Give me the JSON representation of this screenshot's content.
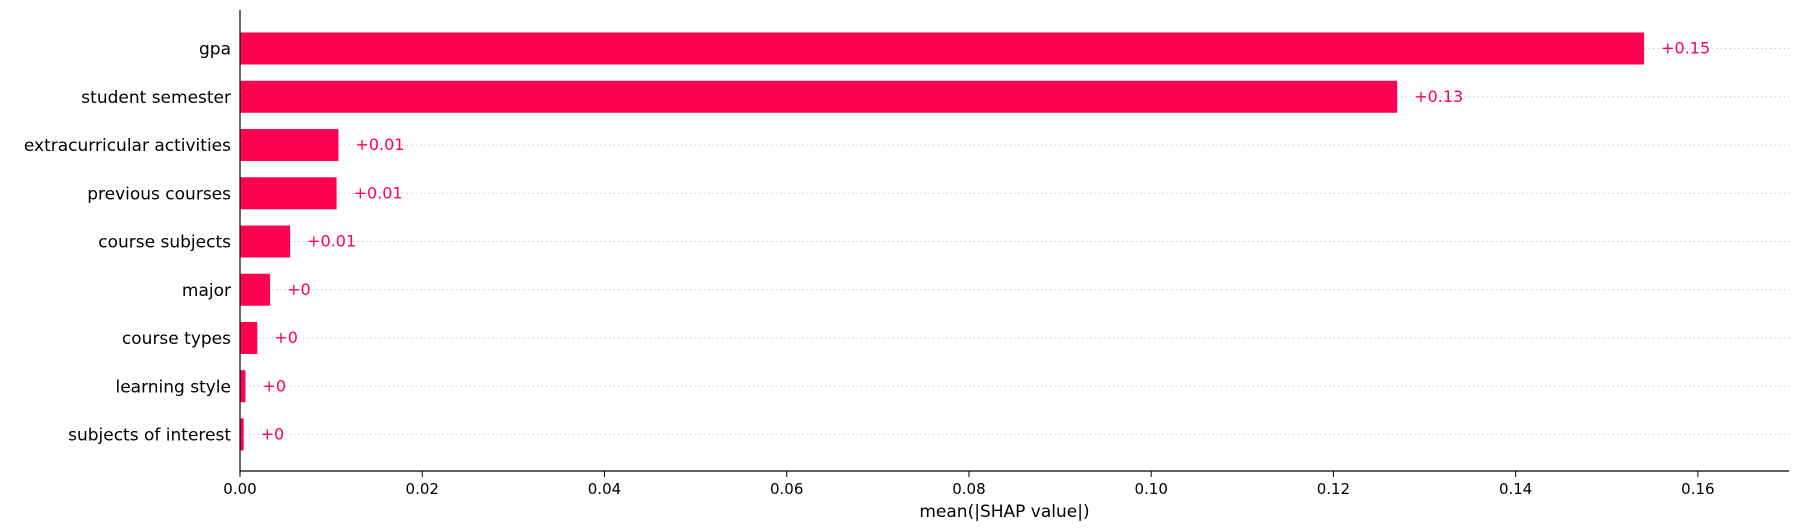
{
  "chart_data": {
    "type": "bar",
    "orientation": "horizontal",
    "categories": [
      "gpa",
      "student semester",
      "extracurricular activities",
      "previous courses",
      "course subjects",
      "major",
      "course types",
      "learning style",
      "subjects of interest"
    ],
    "values": [
      0.1541,
      0.127,
      0.0108,
      0.0106,
      0.0055,
      0.0033,
      0.0019,
      0.0006,
      0.0004
    ],
    "data_labels": [
      "+0.15",
      "+0.13",
      "+0.01",
      "+0.01",
      "+0.01",
      "+0",
      "+0",
      "+0",
      "+0"
    ],
    "xlabel": "mean(|SHAP value|)",
    "ylabel": "",
    "xlim": [
      0,
      0.17
    ],
    "x_ticks": [
      0,
      0.02,
      0.04,
      0.06,
      0.08,
      0.1,
      0.12,
      0.14,
      0.16
    ],
    "x_tick_labels": [
      "0.00",
      "0.02",
      "0.04",
      "0.06",
      "0.08",
      "0.10",
      "0.12",
      "0.14",
      "0.16"
    ],
    "grid": "dotted horizontal guide lines per row",
    "bar_color": "#ff0052"
  }
}
